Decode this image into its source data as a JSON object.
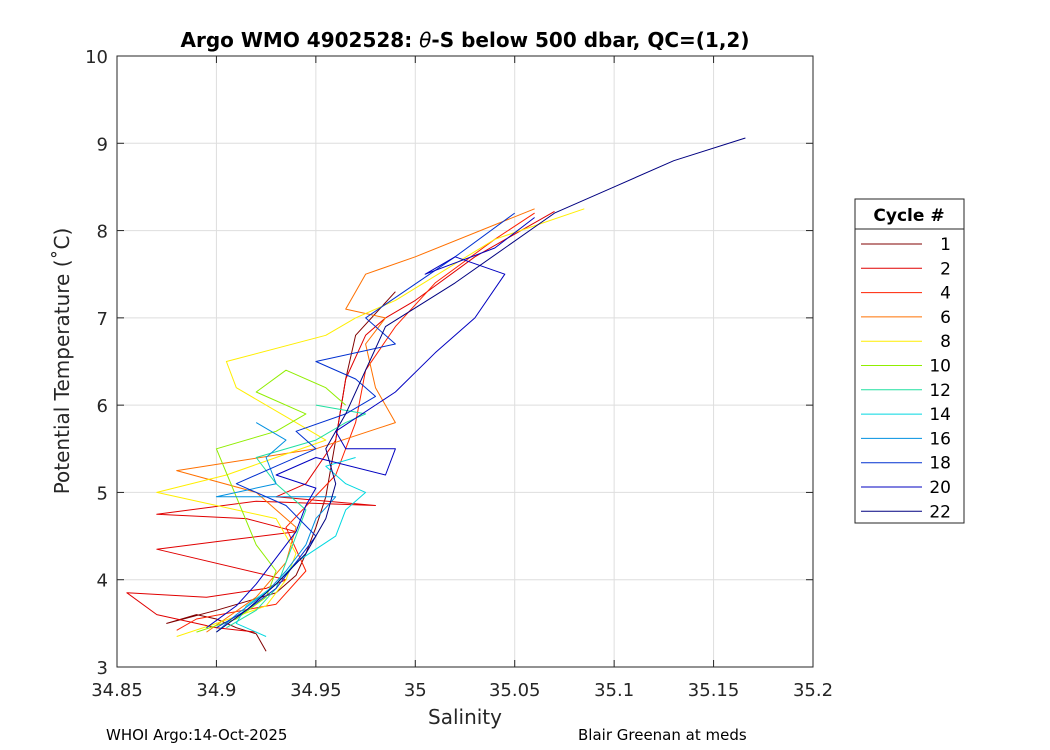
{
  "chart_data": {
    "type": "line",
    "title_prefix": "Argo WMO 4902528: ",
    "title_theta": "θ",
    "title_suffix": "-S below 500 dbar,  QC=(1,2)",
    "xlabel": "Salinity",
    "ylabel": "Potential Temperature (˚C)",
    "xlim": [
      34.85,
      35.2
    ],
    "ylim": [
      3,
      10
    ],
    "xticks": [
      34.85,
      34.9,
      34.95,
      35,
      35.05,
      35.1,
      35.15,
      35.2
    ],
    "xtick_labels": [
      "34.85",
      "34.9",
      "34.95",
      "35",
      "35.05",
      "35.1",
      "35.15",
      "35.2"
    ],
    "yticks": [
      3,
      4,
      5,
      6,
      7,
      8,
      9,
      10
    ],
    "ytick_labels": [
      "3",
      "4",
      "5",
      "6",
      "7",
      "8",
      "9",
      "10"
    ],
    "grid": true,
    "legend_title": "Cycle #",
    "legend_placement": "outside-right",
    "series": [
      {
        "name": "1",
        "color": "#800000",
        "x": [
          34.925,
          34.92,
          34.91,
          34.9,
          34.89,
          34.875,
          34.9,
          34.93,
          34.94,
          34.945,
          34.95,
          34.955,
          34.96,
          34.965,
          34.97,
          34.99
        ],
        "y": [
          3.18,
          3.38,
          3.45,
          3.55,
          3.6,
          3.5,
          3.65,
          3.85,
          4.05,
          4.3,
          4.6,
          4.95,
          5.6,
          6.3,
          6.8,
          7.3
        ]
      },
      {
        "name": "2",
        "color": "#e00000",
        "x": [
          34.92,
          34.9,
          34.87,
          34.855,
          34.895,
          34.925,
          34.935,
          34.87,
          34.905,
          34.94,
          34.915,
          34.87,
          34.92,
          34.98,
          34.93,
          34.945,
          34.96,
          34.965,
          34.975,
          34.985,
          35.0,
          35.03,
          35.07
        ],
        "y": [
          3.4,
          3.45,
          3.6,
          3.85,
          3.8,
          3.9,
          4.0,
          4.35,
          4.45,
          4.55,
          4.7,
          4.75,
          4.9,
          4.85,
          4.95,
          5.1,
          5.6,
          6.3,
          6.8,
          7.0,
          7.2,
          7.7,
          8.22
        ]
      },
      {
        "name": "4",
        "color": "#ff2000",
        "x": [
          34.88,
          34.89,
          34.93,
          34.945,
          34.935,
          34.96,
          34.97,
          34.975,
          34.99,
          35.01,
          35.04,
          35.06
        ],
        "y": [
          3.42,
          3.55,
          3.72,
          4.1,
          4.6,
          5.2,
          5.8,
          6.4,
          6.9,
          7.4,
          7.9,
          8.2
        ]
      },
      {
        "name": "6",
        "color": "#ff7000",
        "x": [
          34.895,
          34.92,
          34.935,
          34.94,
          34.92,
          34.88,
          34.95,
          34.99,
          34.98,
          34.975,
          34.985,
          34.965,
          34.975,
          35.0,
          35.06
        ],
        "y": [
          3.4,
          3.8,
          4.2,
          4.6,
          5.0,
          5.25,
          5.5,
          5.8,
          6.2,
          6.7,
          7.0,
          7.1,
          7.5,
          7.7,
          8.25
        ]
      },
      {
        "name": "8",
        "color": "#ffee00",
        "x": [
          34.88,
          34.9,
          34.925,
          34.935,
          34.94,
          34.93,
          34.87,
          34.905,
          34.93,
          34.955,
          34.94,
          34.91,
          34.905,
          34.955,
          34.97,
          34.99,
          35.04,
          35.085
        ],
        "y": [
          3.35,
          3.5,
          3.7,
          4.0,
          4.3,
          4.7,
          5.0,
          5.2,
          5.4,
          5.6,
          5.8,
          6.2,
          6.5,
          6.8,
          7.0,
          7.2,
          7.9,
          8.25
        ]
      },
      {
        "name": "10",
        "color": "#90ee00",
        "x": [
          34.89,
          34.91,
          34.925,
          34.93,
          34.92,
          34.9,
          34.93,
          34.945,
          34.92,
          34.935,
          34.955,
          34.965
        ],
        "y": [
          3.4,
          3.55,
          3.8,
          4.1,
          4.4,
          5.5,
          5.7,
          5.9,
          6.15,
          6.4,
          6.2,
          6.0
        ]
      },
      {
        "name": "12",
        "color": "#20e0a0",
        "x": [
          34.905,
          34.92,
          34.93,
          34.935,
          34.94,
          34.945,
          34.93,
          34.92,
          34.95,
          34.965,
          34.975,
          34.95
        ],
        "y": [
          3.45,
          3.65,
          3.9,
          4.2,
          4.5,
          4.8,
          5.1,
          5.4,
          5.6,
          5.8,
          5.9,
          6.0
        ]
      },
      {
        "name": "14",
        "color": "#00d8e0",
        "x": [
          34.925,
          34.91,
          34.915,
          34.93,
          34.94,
          34.96,
          34.965,
          34.975,
          34.965,
          34.955,
          34.97
        ],
        "y": [
          3.35,
          3.5,
          3.7,
          3.95,
          4.2,
          4.5,
          4.8,
          5.0,
          5.1,
          5.3,
          5.4
        ]
      },
      {
        "name": "16",
        "color": "#0090e0",
        "x": [
          34.9,
          34.91,
          34.925,
          34.935,
          34.945,
          34.95,
          34.96,
          34.9,
          34.93,
          34.925,
          34.935,
          34.92
        ],
        "y": [
          3.4,
          3.6,
          3.85,
          4.1,
          4.4,
          4.7,
          4.95,
          4.95,
          5.1,
          5.4,
          5.6,
          5.8
        ]
      },
      {
        "name": "18",
        "color": "#0030d0",
        "x": [
          34.9,
          34.915,
          34.93,
          34.94,
          34.95,
          34.935,
          34.91,
          34.93,
          34.95,
          34.94,
          34.965,
          34.98,
          34.97,
          34.95,
          34.99,
          34.975,
          35.02,
          35.05
        ],
        "y": [
          3.45,
          3.65,
          3.9,
          4.2,
          4.5,
          4.85,
          5.1,
          5.3,
          5.5,
          5.7,
          5.9,
          6.1,
          6.3,
          6.5,
          6.7,
          7.0,
          7.7,
          8.2
        ]
      },
      {
        "name": "20",
        "color": "#0000c0",
        "x": [
          34.895,
          34.91,
          34.92,
          34.93,
          34.94,
          34.945,
          34.95,
          34.93,
          34.95,
          34.985,
          34.99,
          34.965,
          34.96,
          34.99,
          35.01,
          35.03,
          35.045,
          35.02,
          35.005,
          35.04,
          35.06
        ],
        "y": [
          3.45,
          3.7,
          3.95,
          4.25,
          4.55,
          4.85,
          5.05,
          5.2,
          5.4,
          5.2,
          5.5,
          5.5,
          5.7,
          6.15,
          6.6,
          7.0,
          7.5,
          7.7,
          7.5,
          7.8,
          8.15
        ]
      },
      {
        "name": "22",
        "color": "#000080",
        "x": [
          34.9,
          34.915,
          34.93,
          34.945,
          34.955,
          34.96,
          34.955,
          34.965,
          34.975,
          34.985,
          35.02,
          35.07,
          35.1,
          35.13,
          35.166
        ],
        "y": [
          3.4,
          3.65,
          3.95,
          4.3,
          4.7,
          5.1,
          5.5,
          5.9,
          6.4,
          6.9,
          7.4,
          8.2,
          8.5,
          8.8,
          9.06
        ]
      }
    ]
  },
  "footer": {
    "left": "WHOI Argo:14-Oct-2025",
    "right": "Blair Greenan at meds"
  }
}
